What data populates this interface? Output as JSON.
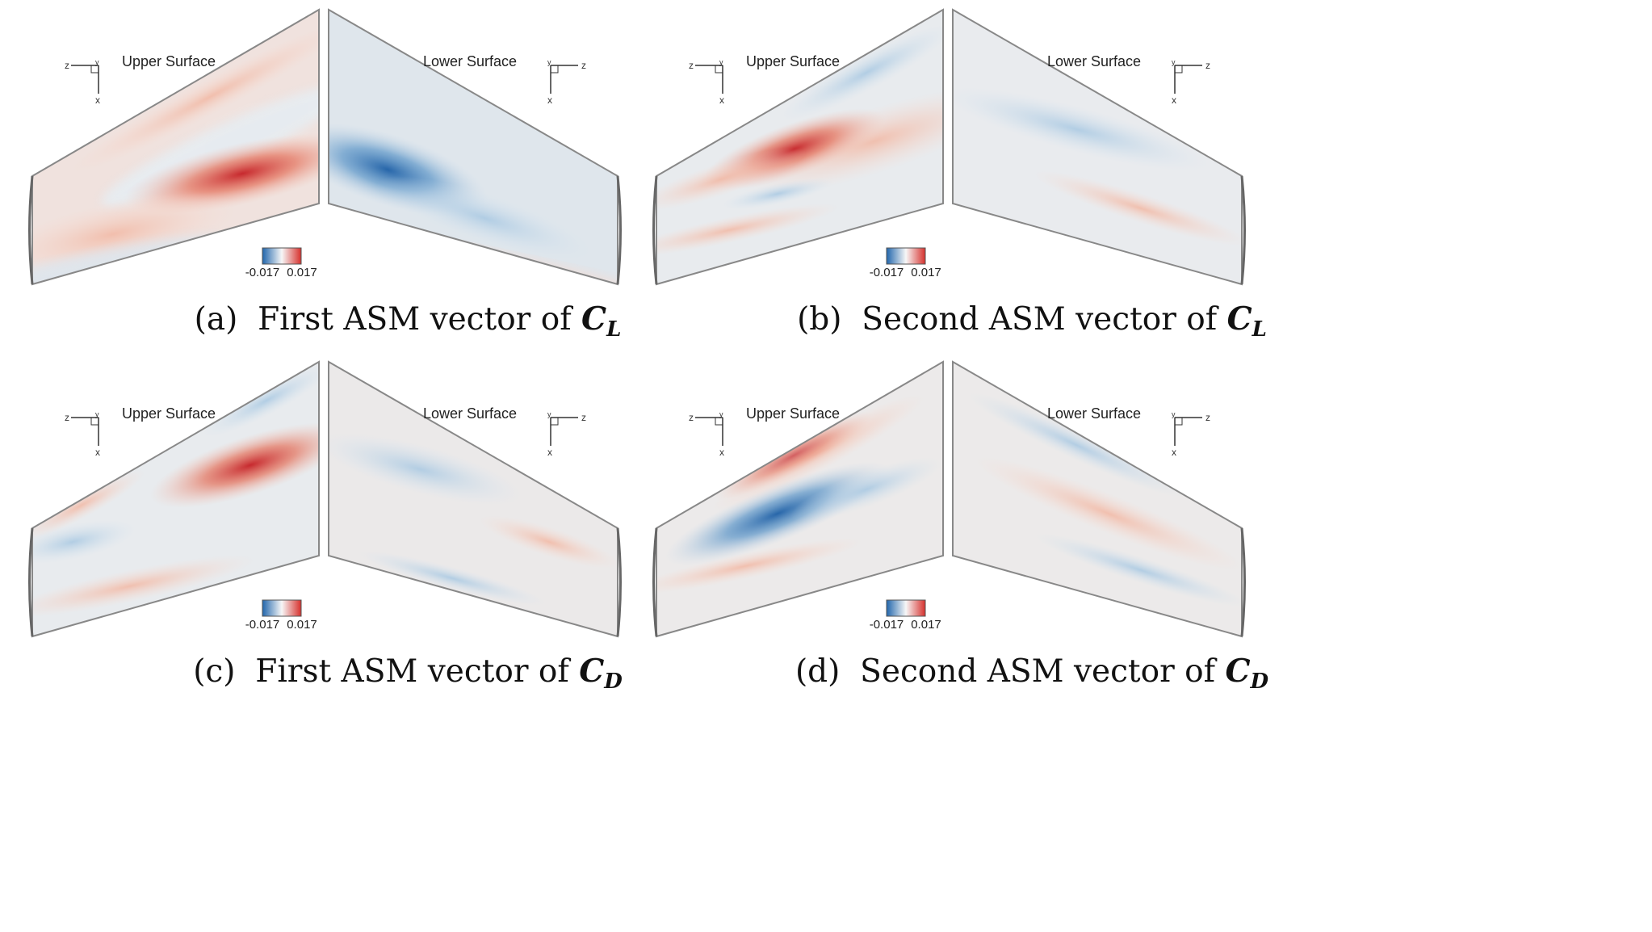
{
  "panels": [
    {
      "id": "a",
      "upper_label": "Upper Surface",
      "lower_label": "Lower Surface",
      "colorbar": {
        "min_label": "-0.017",
        "max_label": "0.017",
        "colors": [
          "#2166ac",
          "#f7f7f7",
          "#d6302c"
        ]
      },
      "axes_upper": {
        "horizontal": "z",
        "vertical": "x",
        "out_of_plane": "y"
      },
      "axes_lower": {
        "horizontal": "z",
        "vertical": "x",
        "out_of_plane": "y"
      },
      "caption": {
        "prefix": "(a)",
        "text": "First ASM vector of",
        "symbol": "C",
        "subscript": "L"
      }
    },
    {
      "id": "b",
      "upper_label": "Upper Surface",
      "lower_label": "Lower Surface",
      "colorbar": {
        "min_label": "-0.017",
        "max_label": "0.017",
        "colors": [
          "#2166ac",
          "#f7f7f7",
          "#d6302c"
        ]
      },
      "axes_upper": {
        "horizontal": "z",
        "vertical": "x",
        "out_of_plane": "y"
      },
      "axes_lower": {
        "horizontal": "z",
        "vertical": "x",
        "out_of_plane": "y"
      },
      "caption": {
        "prefix": "(b)",
        "text": "Second ASM vector of",
        "symbol": "C",
        "subscript": "L"
      }
    },
    {
      "id": "c",
      "upper_label": "Upper Surface",
      "lower_label": "Lower Surface",
      "colorbar": {
        "min_label": "-0.017",
        "max_label": "0.017",
        "colors": [
          "#2166ac",
          "#f7f7f7",
          "#d6302c"
        ]
      },
      "axes_upper": {
        "horizontal": "z",
        "vertical": "x",
        "out_of_plane": "y"
      },
      "axes_lower": {
        "horizontal": "z",
        "vertical": "x",
        "out_of_plane": "y"
      },
      "caption": {
        "prefix": "(c)",
        "text": "First ASM vector of",
        "symbol": "C",
        "subscript": "D"
      }
    },
    {
      "id": "d",
      "upper_label": "Upper Surface",
      "lower_label": "Lower Surface",
      "colorbar": {
        "min_label": "-0.017",
        "max_label": "0.017",
        "colors": [
          "#2166ac",
          "#f7f7f7",
          "#d6302c"
        ]
      },
      "axes_upper": {
        "horizontal": "z",
        "vertical": "x",
        "out_of_plane": "y"
      },
      "axes_lower": {
        "horizontal": "z",
        "vertical": "x",
        "out_of_plane": "y"
      },
      "caption": {
        "prefix": "(d)",
        "text": "Second ASM vector of",
        "symbol": "C",
        "subscript": "D"
      }
    }
  ]
}
